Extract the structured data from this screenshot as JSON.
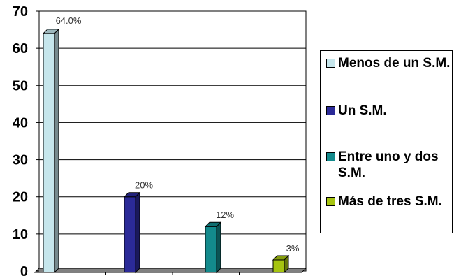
{
  "chart_data": {
    "type": "bar",
    "categories": [
      "Menos de un S.M.",
      "Un S.M.",
      "Entre uno y dos S.M.",
      "Más de tres S.M."
    ],
    "values": [
      64,
      20,
      12,
      3
    ],
    "data_labels": [
      "64.0%",
      "20%",
      "12%",
      "3%"
    ],
    "colors": [
      "#c6e6ec",
      "#2b2a98",
      "#138a8c",
      "#a6c410"
    ],
    "ylim": [
      0,
      70
    ],
    "yticks": [
      0,
      10,
      20,
      30,
      40,
      50,
      60,
      70
    ],
    "grid": true,
    "legend": {
      "position": "right",
      "items": [
        {
          "label": "Menos de un S.M.",
          "color": "#c6e6ec"
        },
        {
          "label": "Un S.M.",
          "color": "#2b2a98"
        },
        {
          "label": "Entre uno y dos S.M.",
          "color": "#138a8c"
        },
        {
          "label": "Más de tres S.M.",
          "color": "#a6c410"
        }
      ]
    }
  }
}
